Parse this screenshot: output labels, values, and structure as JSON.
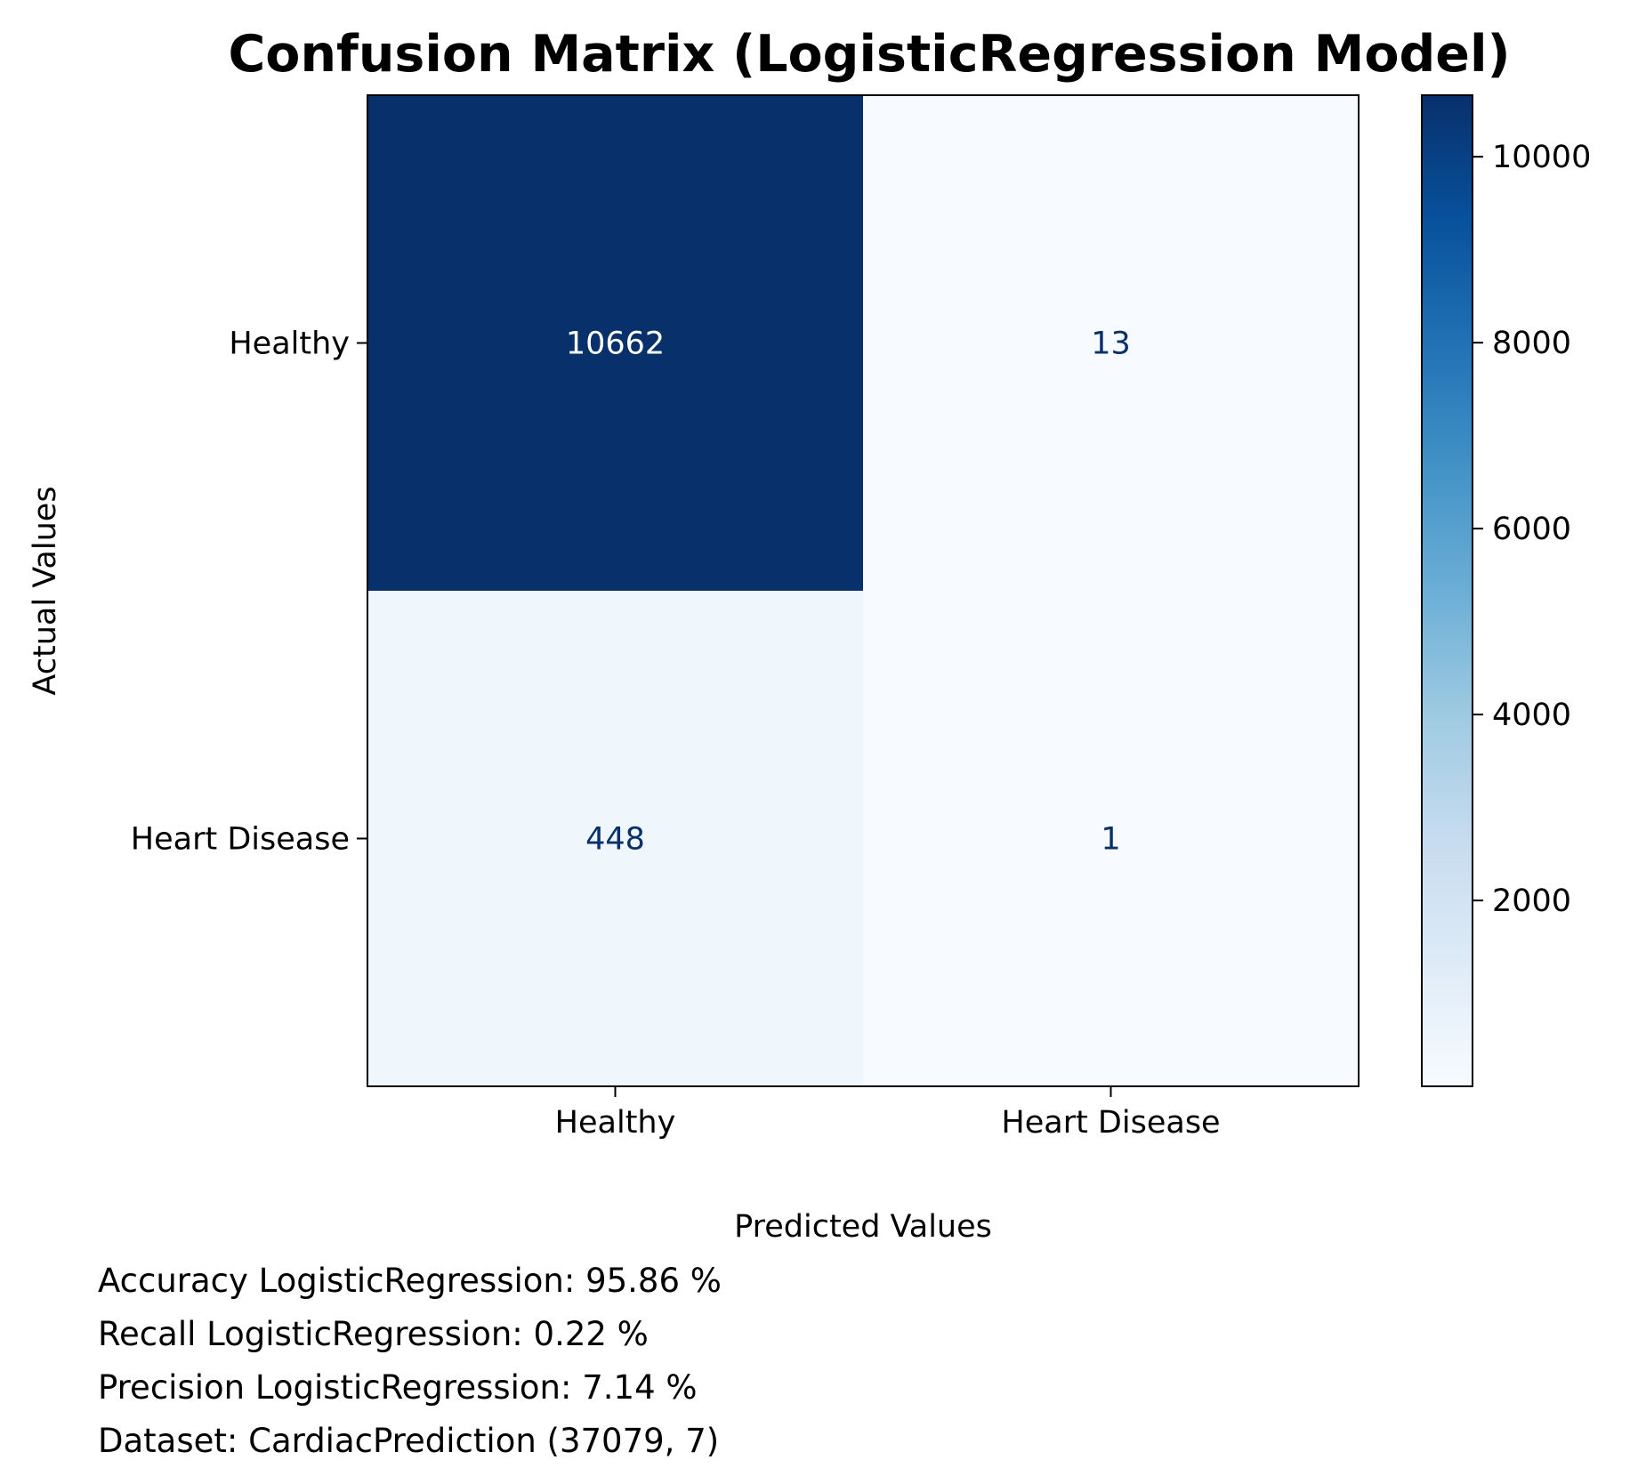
{
  "chart_data": {
    "type": "heatmap",
    "title": "Confusion Matrix (LogisticRegression Model)",
    "xlabel": "Predicted Values",
    "ylabel": "Actual Values",
    "x_categories": [
      "Healthy",
      "Heart Disease"
    ],
    "y_categories": [
      "Healthy",
      "Heart Disease"
    ],
    "matrix": [
      [
        10662,
        13
      ],
      [
        448,
        1
      ]
    ],
    "colormap": "Blues",
    "colorbar": {
      "min": 1,
      "max": 10662,
      "ticks": [
        2000,
        4000,
        6000,
        8000,
        10000
      ]
    }
  },
  "metrics": [
    "Accuracy LogisticRegression: 95.86 %",
    "Recall LogisticRegression: 0.22 %",
    "Precision LogisticRegression: 7.14 %",
    "Dataset: CardiacPrediction (37079, 7)"
  ]
}
